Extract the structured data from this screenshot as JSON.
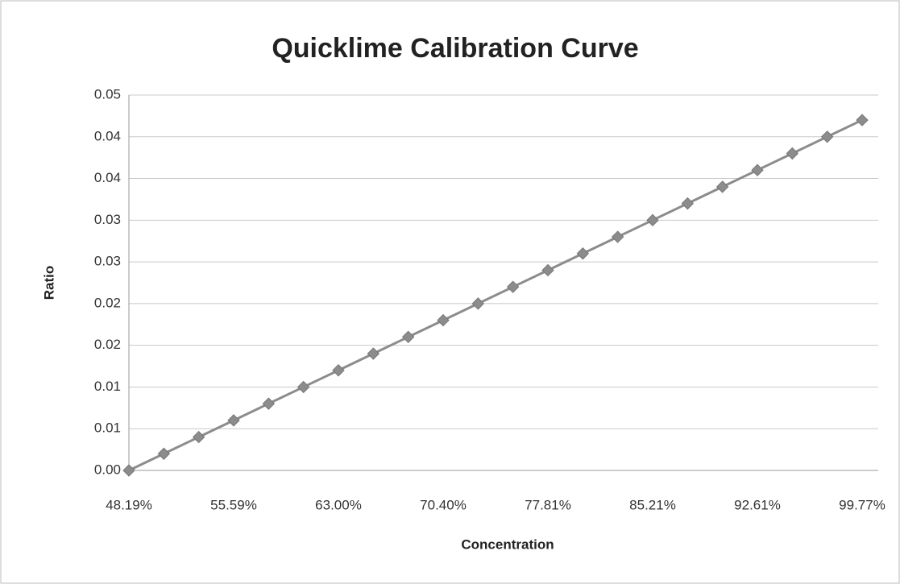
{
  "chart_data": {
    "type": "line",
    "title": "Quicklime Calibration Curve",
    "x_label": "Concentration",
    "y_label": "Ratio",
    "categories": [
      "48.19%",
      null,
      null,
      "55.59%",
      null,
      null,
      "63.00%",
      null,
      null,
      "70.40%",
      null,
      null,
      "77.81%",
      null,
      null,
      "85.21%",
      null,
      null,
      "92.61%",
      null,
      null,
      "99.77%"
    ],
    "series": [
      {
        "name": "Ratio",
        "color": "#8c8c8c",
        "values": [
          0,
          0.002,
          0.004,
          0.006,
          0.008,
          0.01,
          0.012,
          0.014,
          0.016,
          0.018,
          0.02,
          0.022,
          0.024,
          0.026,
          0.028,
          0.03,
          0.032,
          0.034,
          0.036,
          0.038,
          0.04,
          0.042
        ]
      }
    ],
    "ylim": [
      0,
      0.045
    ],
    "yticks": [
      {
        "value": 0,
        "label": "0.00"
      },
      {
        "value": 0.005,
        "label": "0.01"
      },
      {
        "value": 0.01,
        "label": "0.01"
      },
      {
        "value": 0.015,
        "label": "0.02"
      },
      {
        "value": 0.02,
        "label": "0.02"
      },
      {
        "value": 0.025,
        "label": "0.03"
      },
      {
        "value": 0.03,
        "label": "0.03"
      },
      {
        "value": 0.035,
        "label": "0.04"
      },
      {
        "value": 0.04,
        "label": "0.04"
      },
      {
        "value": 0.045,
        "label": "0.05"
      }
    ],
    "grid": true
  }
}
